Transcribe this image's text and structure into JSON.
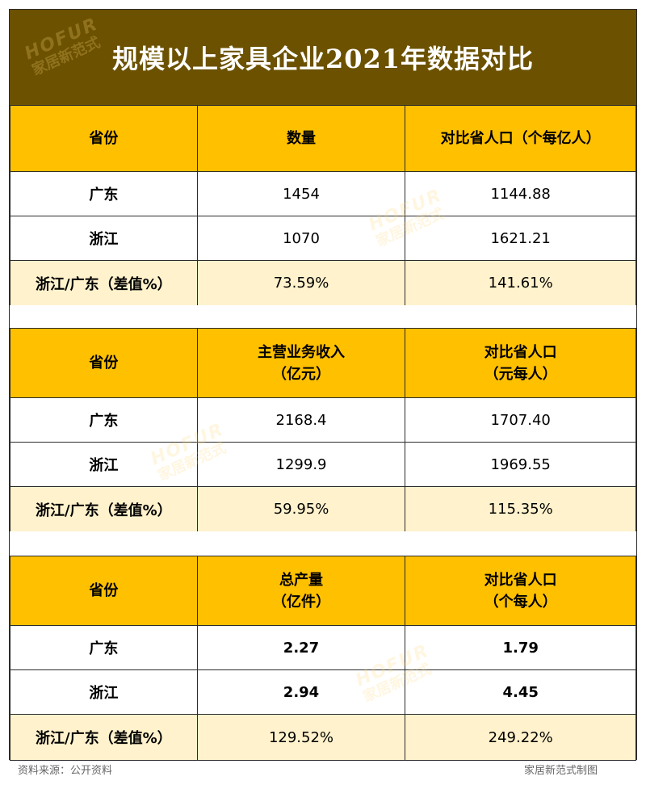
{
  "title": "规模以上家具企业2021年数据对比",
  "watermark": {
    "en": "HOFUR",
    "cn": "家居新范式"
  },
  "tables": [
    {
      "header": {
        "province": "省份",
        "col2": "数量",
        "col2_sub": "",
        "col3": "对比省人口（个每亿人）",
        "col3_sub": ""
      },
      "rows": [
        {
          "province": "广东",
          "value": "1454",
          "per_capita": "1144.88"
        },
        {
          "province": "浙江",
          "value": "1070",
          "per_capita": "1621.21"
        }
      ],
      "ratio": {
        "label": "浙江/广东（差值%）",
        "value": "73.59%",
        "per_capita": "141.61%"
      }
    },
    {
      "header": {
        "province": "省份",
        "col2": "主营业务收入",
        "col2_sub": "（亿元）",
        "col3": "对比省人口",
        "col3_sub": "（元每人）"
      },
      "rows": [
        {
          "province": "广东",
          "value": "2168.4",
          "per_capita": "1707.40"
        },
        {
          "province": "浙江",
          "value": "1299.9",
          "per_capita": "1969.55"
        }
      ],
      "ratio": {
        "label": "浙江/广东（差值%）",
        "value": "59.95%",
        "per_capita": "115.35%"
      }
    },
    {
      "header": {
        "province": "省份",
        "col2": "总产量",
        "col2_sub": "（亿件）",
        "col3": "对比省人口",
        "col3_sub": "（个每人）"
      },
      "rows": [
        {
          "province": "广东",
          "value": "2.27",
          "per_capita": "1.79"
        },
        {
          "province": "浙江",
          "value": "2.94",
          "per_capita": "4.45"
        }
      ],
      "ratio": {
        "label": "浙江/广东（差值%）",
        "value": "129.52%",
        "per_capita": "249.22%"
      }
    }
  ],
  "footer": {
    "source": "资料来源：公开资料",
    "credit": "家居新范式制图"
  },
  "colors": {
    "title_bg": "#6b5100",
    "header_bg": "#ffc000",
    "ratio_bg": "#fff2cc"
  }
}
